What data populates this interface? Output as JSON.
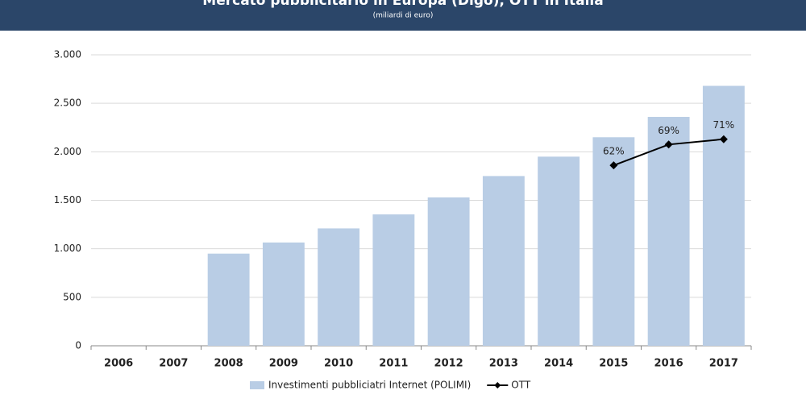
{
  "chart_data": {
    "type": "bar",
    "title": "Mercato pubblicitario in Europa (Digo), OTT in Italia",
    "subtitle": "(miliardi di euro)",
    "categories": [
      "2006",
      "2007",
      "2008",
      "2009",
      "2010",
      "2011",
      "2012",
      "2013",
      "2014",
      "2015",
      "2016",
      "2017"
    ],
    "series": [
      {
        "name": "Investimenti pubbliciatri Internet (POLIMI)",
        "type": "bar",
        "color": "#b9cde5",
        "values": [
          null,
          null,
          950,
          1065,
          1210,
          1355,
          1530,
          1750,
          1950,
          2150,
          2360,
          2680
        ]
      },
      {
        "name": "OTT",
        "type": "line",
        "color": "#000000",
        "values": [
          null,
          null,
          null,
          null,
          null,
          null,
          null,
          null,
          null,
          1860,
          2075,
          2130
        ]
      }
    ],
    "annotations": [
      {
        "text": "62%",
        "x": "2015"
      },
      {
        "text": "69%",
        "x": "2016"
      },
      {
        "text": "71%",
        "x": "2017"
      }
    ],
    "ylim": [
      0,
      3000
    ],
    "yticks": [
      0,
      500,
      {
        "value": 1000,
        "label": "1.000"
      },
      {
        "value": 1500,
        "label": "1.500"
      },
      {
        "value": 2000,
        "label": "2.000"
      },
      {
        "value": 2500,
        "label": "2.500"
      },
      {
        "value": 3000,
        "label": "3.000"
      }
    ],
    "grid": true,
    "legend": "bottom"
  }
}
